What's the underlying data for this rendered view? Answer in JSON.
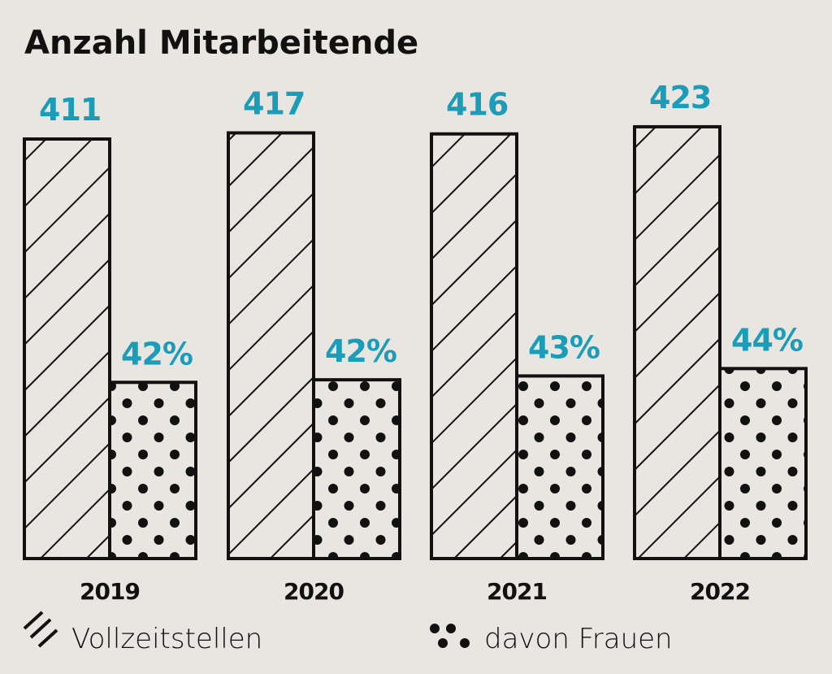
{
  "chart_data": {
    "type": "bar",
    "title": "Anzahl Mitarbeitende",
    "categories": [
      "2019",
      "2020",
      "2021",
      "2022"
    ],
    "series": [
      {
        "name": "Vollzeitstellen",
        "values": [
          411,
          417,
          416,
          423
        ],
        "labels": [
          "411",
          "417",
          "416",
          "423"
        ],
        "pattern": "hatch"
      },
      {
        "name": "davon Frauen",
        "values_percent": [
          42,
          42,
          43,
          44
        ],
        "labels": [
          "42%",
          "42%",
          "43%",
          "44%"
        ],
        "pattern": "dots"
      }
    ],
    "xlabel": "",
    "ylabel": "",
    "ylim": [
      0,
      423
    ],
    "grid": false,
    "legend_placement": "bottom",
    "colors": {
      "label": "#1b9cb8",
      "stroke": "#111111",
      "background": "#e9e6e2"
    }
  }
}
